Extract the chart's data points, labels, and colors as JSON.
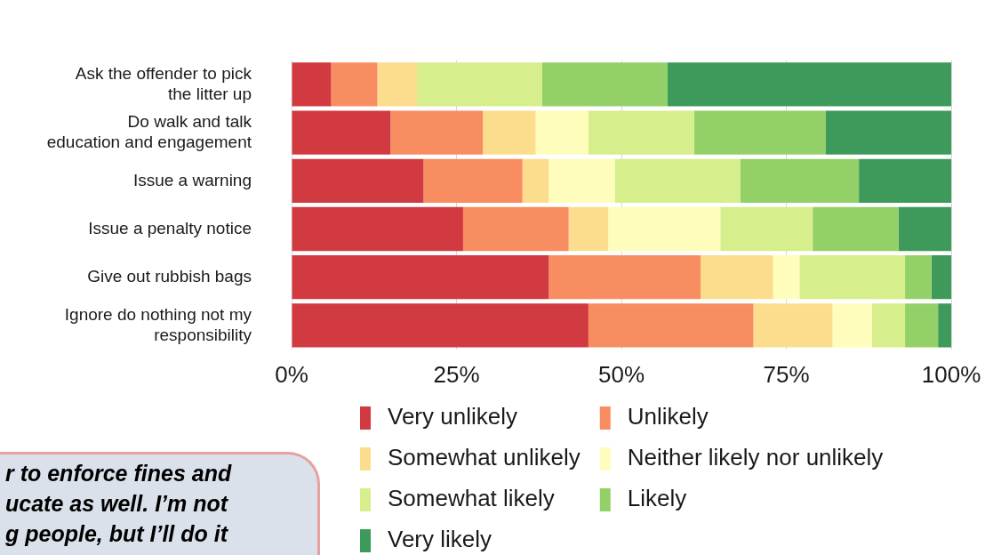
{
  "chart_data": {
    "type": "bar",
    "orientation": "horizontal",
    "stacked": true,
    "categories": [
      "Ask the offender to pick\nthe litter up",
      "Do walk and talk\neducation and engagement",
      "Issue a warning",
      "Issue a penalty notice",
      "Give out rubbish bags",
      "Ignore do nothing not my\nresponsibility"
    ],
    "series": [
      {
        "name": "Very unlikely",
        "color": "#d13a40",
        "values": [
          6,
          15,
          20,
          26,
          39,
          45
        ]
      },
      {
        "name": "Unlikely",
        "color": "#f98d62",
        "values": [
          7,
          14,
          15,
          16,
          23,
          25
        ]
      },
      {
        "name": "Somewhat unlikely",
        "color": "#fbdd8d",
        "values": [
          6,
          8,
          4,
          6,
          11,
          12
        ]
      },
      {
        "name": "Neither likely nor unlikely",
        "color": "#fefdbc",
        "values": [
          0,
          8,
          10,
          17,
          4,
          6
        ]
      },
      {
        "name": "Somewhat likely",
        "color": "#d7ee8c",
        "values": [
          19,
          16,
          19,
          14,
          16,
          5
        ]
      },
      {
        "name": "Likely",
        "color": "#94d068",
        "values": [
          19,
          20,
          18,
          13,
          4,
          5
        ]
      },
      {
        "name": "Very likely",
        "color": "#3e9a5b",
        "values": [
          43,
          19,
          14,
          8,
          3,
          2
        ]
      }
    ],
    "xlim": [
      0,
      100
    ],
    "xticks": [
      {
        "value": 0,
        "label": "0%"
      },
      {
        "value": 25,
        "label": "25%"
      },
      {
        "value": 50,
        "label": "50%"
      },
      {
        "value": 75,
        "label": "75%"
      },
      {
        "value": 100,
        "label": "100%"
      }
    ],
    "grid": "x",
    "legend": "bottom",
    "annotations": [
      "r to enforce fines and\nucate as well. I’m not\ng people, but I’ll do it"
    ]
  }
}
